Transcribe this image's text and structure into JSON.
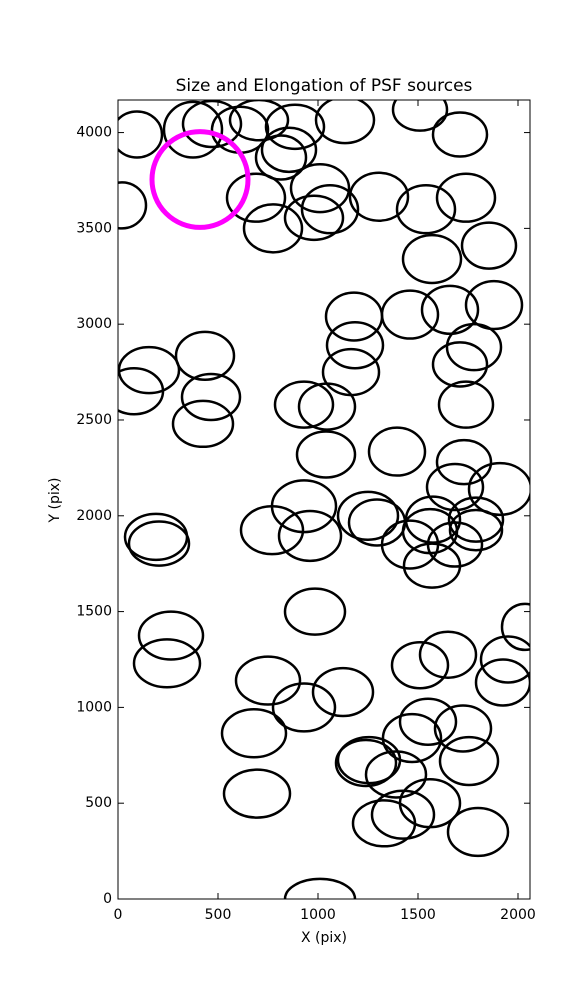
{
  "chart_data": {
    "type": "ellipse",
    "title": "Size and Elongation of PSF sources",
    "x_label": "X (pix)",
    "y_label": "Y (pix)",
    "xlim": [
      0,
      2060
    ],
    "ylim": [
      0,
      4170
    ],
    "xticks": [
      0,
      500,
      1000,
      1500,
      2000
    ],
    "yticks": [
      0,
      500,
      1000,
      1500,
      2000,
      2500,
      3000,
      3500,
      4000
    ],
    "color": "#000000",
    "x": [
      95,
      20,
      375,
      470,
      610,
      705,
      885,
      855,
      815,
      1135,
      1510,
      1710,
      690,
      775,
      1010,
      1060,
      980,
      1305,
      1540,
      1740,
      1855,
      1570,
      1880,
      1660,
      1460,
      1180,
      1185,
      1165,
      1780,
      1710,
      1740,
      155,
      80,
      435,
      465,
      425,
      930,
      1045,
      1040,
      1395,
      1730,
      1685,
      1910,
      930,
      770,
      960,
      1250,
      1295,
      1460,
      1575,
      1560,
      1790,
      1790,
      1685,
      1570,
      190,
      205,
      985,
      265,
      245,
      2035,
      1650,
      1510,
      1950,
      1925,
      750,
      930,
      1125,
      680,
      1550,
      1470,
      1725,
      1755,
      1240,
      1255,
      1390,
      695,
      1560,
      1425,
      1330,
      1800,
      1010
    ],
    "y": [
      3990,
      3620,
      4015,
      4045,
      4015,
      4065,
      4030,
      3910,
      3870,
      4065,
      4120,
      3990,
      3660,
      3500,
      3710,
      3600,
      3555,
      3665,
      3600,
      3660,
      3410,
      3340,
      3100,
      3075,
      3050,
      3040,
      2890,
      2750,
      2880,
      2790,
      2580,
      2760,
      2650,
      2835,
      2620,
      2480,
      2580,
      2570,
      2320,
      2335,
      2280,
      2150,
      2140,
      2050,
      1925,
      1895,
      2000,
      1965,
      1850,
      1980,
      1920,
      1980,
      1925,
      1850,
      1740,
      1890,
      1855,
      1500,
      1375,
      1230,
      1420,
      1275,
      1220,
      1250,
      1130,
      1140,
      1000,
      1080,
      865,
      925,
      840,
      890,
      720,
      710,
      725,
      650,
      550,
      500,
      440,
      395,
      350,
      0
    ],
    "width": [
      250,
      240,
      290,
      290,
      280,
      290,
      290,
      270,
      250,
      290,
      270,
      270,
      290,
      290,
      290,
      280,
      290,
      290,
      290,
      290,
      270,
      290,
      280,
      280,
      280,
      280,
      280,
      280,
      270,
      270,
      270,
      300,
      290,
      290,
      290,
      300,
      290,
      280,
      290,
      280,
      270,
      280,
      310,
      320,
      310,
      310,
      300,
      280,
      280,
      270,
      270,
      270,
      260,
      270,
      280,
      310,
      300,
      300,
      320,
      330,
      230,
      280,
      280,
      270,
      270,
      320,
      310,
      300,
      320,
      280,
      290,
      280,
      290,
      300,
      310,
      300,
      330,
      300,
      310,
      310,
      300,
      350
    ],
    "height": [
      240,
      240,
      290,
      240,
      240,
      210,
      230,
      230,
      230,
      240,
      220,
      230,
      250,
      250,
      250,
      250,
      230,
      250,
      250,
      250,
      240,
      250,
      250,
      250,
      250,
      250,
      240,
      240,
      240,
      230,
      240,
      240,
      240,
      250,
      240,
      240,
      240,
      240,
      240,
      250,
      230,
      240,
      270,
      270,
      250,
      260,
      250,
      240,
      250,
      240,
      230,
      230,
      210,
      230,
      230,
      240,
      230,
      240,
      250,
      250,
      240,
      240,
      240,
      240,
      240,
      250,
      250,
      250,
      250,
      240,
      250,
      240,
      250,
      240,
      240,
      240,
      250,
      250,
      250,
      240,
      250,
      210
    ],
    "highlight": {
      "x": 410,
      "y": 3755,
      "width": 480,
      "height": 500,
      "color": "#ff00ff"
    }
  }
}
